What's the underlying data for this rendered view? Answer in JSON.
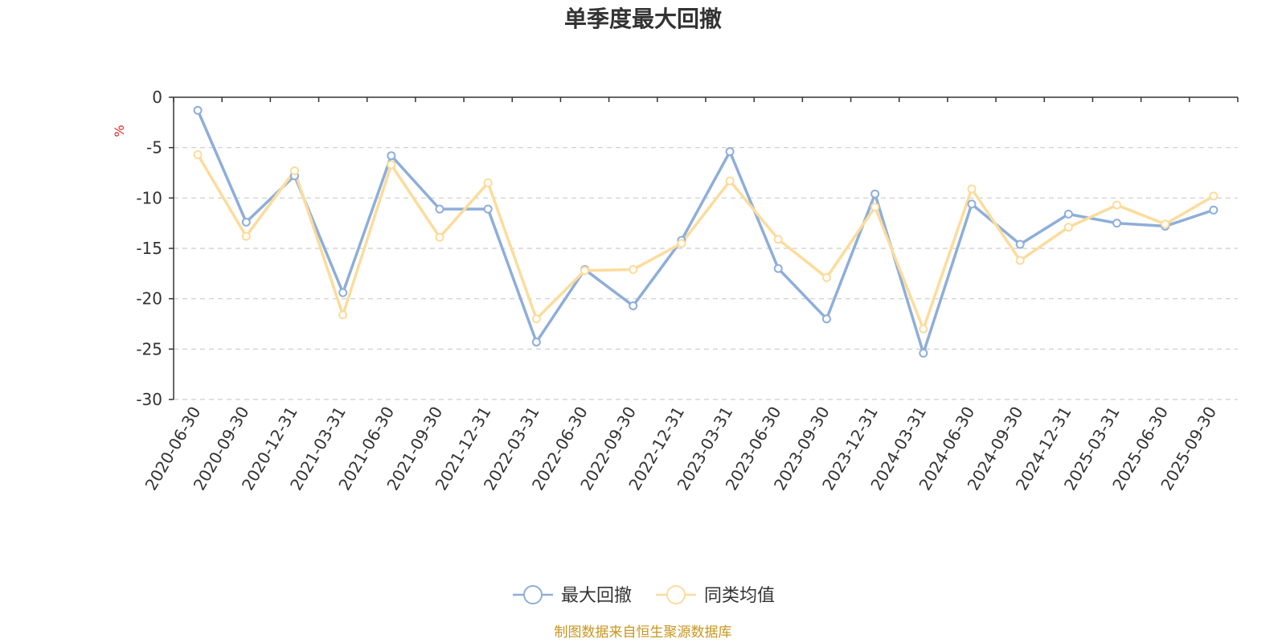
{
  "chart_data": {
    "type": "line",
    "title": "单季度最大回撤",
    "ylabel": "%",
    "xlabel": "",
    "ylim": [
      -30,
      0
    ],
    "yticks": [
      0,
      -5,
      -10,
      -15,
      -20,
      -25,
      -30
    ],
    "ytick_labels": [
      "0",
      "-5",
      "-10",
      "-15",
      "-20",
      "-25",
      "-30"
    ],
    "grid": true,
    "legend_position": "bottom",
    "categories": [
      "2020-06-30",
      "2020-09-30",
      "2020-12-31",
      "2021-03-31",
      "2021-06-30",
      "2021-09-30",
      "2021-12-31",
      "2022-03-31",
      "2022-06-30",
      "2022-09-30",
      "2022-12-31",
      "2023-03-31",
      "2023-06-30",
      "2023-09-30",
      "2023-12-31",
      "2024-03-31",
      "2024-06-30",
      "2024-09-30",
      "2024-12-31",
      "2025-03-31",
      "2025-06-30",
      "2025-09-30"
    ],
    "series": [
      {
        "name": "最大回撤",
        "color": "#8eaed9",
        "values": [
          -1.3,
          -12.4,
          -7.8,
          -19.4,
          -5.8,
          -11.1,
          -11.1,
          -24.3,
          -17.1,
          -20.7,
          -14.2,
          -5.4,
          -17.0,
          -22.0,
          -9.6,
          -25.4,
          -10.6,
          -14.6,
          -11.6,
          -12.5,
          -12.8,
          -11.2
        ]
      },
      {
        "name": "同类均值",
        "color": "#fcdc9c",
        "values": [
          -5.7,
          -13.8,
          -7.3,
          -21.6,
          -6.7,
          -13.9,
          -8.5,
          -22.0,
          -17.2,
          -17.1,
          -14.5,
          -8.3,
          -14.1,
          -17.9,
          -10.9,
          -23.0,
          -9.1,
          -16.2,
          -12.9,
          -10.7,
          -12.6,
          -9.8
        ]
      }
    ],
    "source_note": "制图数据来自恒生聚源数据库"
  }
}
